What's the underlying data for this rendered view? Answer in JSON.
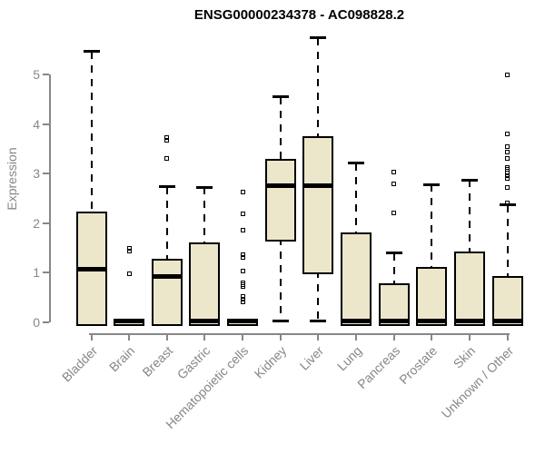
{
  "page": {
    "background": "#ffffff"
  },
  "chart_data": {
    "type": "boxplot",
    "title": "ENSG00000234378 - AC098828.2",
    "ylabel": "Expression",
    "xlabel": "",
    "grid": false,
    "legend": false,
    "y_axis": {
      "ticks": [
        0,
        1,
        2,
        3,
        4,
        5
      ],
      "range": [
        0,
        5.77
      ]
    },
    "whisker_style": "dashed",
    "outlier_marker": "open-square",
    "colors": {
      "box_fill": "#ECE7CB",
      "box_border": "#000000",
      "median": "#000000",
      "whisker": "#000000",
      "axis": "#878787",
      "tick_label": "#878787",
      "title": "#000000"
    },
    "categories": [
      "Bladder",
      "Brain",
      "Breast",
      "Gastric",
      "Hematopoietic cells",
      "Kidney",
      "Liver",
      "Lung",
      "Pancreas",
      "Prostate",
      "Skin",
      "Unknown / Other"
    ],
    "series": [
      {
        "name": "Bladder",
        "whisker_low": 0,
        "q1": 0,
        "median": 1.07,
        "q3": 2.24,
        "whisker_high": 5.46,
        "outliers": []
      },
      {
        "name": "Brain",
        "whisker_low": 0,
        "q1": 0,
        "median": 0.02,
        "q3": 0.05,
        "whisker_high": 0.05,
        "outliers": [
          1.5,
          1.44,
          0.98
        ]
      },
      {
        "name": "Breast",
        "whisker_low": 0,
        "q1": 0,
        "median": 0.92,
        "q3": 1.29,
        "whisker_high": 2.73,
        "outliers": [
          3.72,
          3.67,
          3.31
        ]
      },
      {
        "name": "Gastric",
        "whisker_low": 0,
        "q1": 0,
        "median": 0.03,
        "q3": 1.62,
        "whisker_high": 2.72,
        "outliers": []
      },
      {
        "name": "Hematopoietic cells",
        "whisker_low": 0,
        "q1": 0,
        "median": 0.02,
        "q3": 0.05,
        "whisker_high": 0.05,
        "outliers": [
          2.63,
          2.19,
          1.86,
          1.36,
          1.31,
          1.04,
          0.8,
          0.76,
          0.72,
          0.52,
          0.47,
          0.42
        ]
      },
      {
        "name": "Kidney",
        "whisker_low": 0.02,
        "q1": 1.71,
        "median": 2.76,
        "q3": 3.3,
        "whisker_high": 4.55,
        "outliers": []
      },
      {
        "name": "Liver",
        "whisker_low": 0.02,
        "q1": 1.05,
        "median": 2.76,
        "q3": 3.75,
        "whisker_high": 5.74,
        "outliers": []
      },
      {
        "name": "Lung",
        "whisker_low": 0,
        "q1": 0,
        "median": 0.03,
        "q3": 1.81,
        "whisker_high": 3.21,
        "outliers": []
      },
      {
        "name": "Pancreas",
        "whisker_low": 0,
        "q1": 0,
        "median": 0.03,
        "q3": 0.78,
        "whisker_high": 1.4,
        "outliers": [
          3.03,
          2.79,
          2.21
        ]
      },
      {
        "name": "Prostate",
        "whisker_low": 0,
        "q1": 0,
        "median": 0.03,
        "q3": 1.11,
        "whisker_high": 2.78,
        "outliers": []
      },
      {
        "name": "Skin",
        "whisker_low": 0,
        "q1": 0,
        "median": 0.03,
        "q3": 1.43,
        "whisker_high": 2.87,
        "outliers": []
      },
      {
        "name": "Unknown / Other",
        "whisker_low": 0,
        "q1": 0,
        "median": 0.03,
        "q3": 0.93,
        "whisker_high": 2.37,
        "outliers": [
          5.0,
          3.8,
          3.54,
          3.43,
          3.31,
          3.13,
          3.08,
          3.02,
          2.96,
          2.9,
          2.72,
          2.41
        ]
      }
    ]
  }
}
